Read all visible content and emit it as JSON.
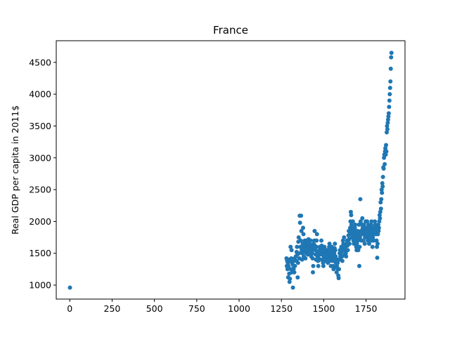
{
  "chart_data": {
    "type": "scatter",
    "title": "France",
    "xlabel": "",
    "ylabel": "Real GDP per capita in 2011$",
    "xlim": [
      -80,
      1980
    ],
    "ylim": [
      780,
      4840
    ],
    "xticks": [
      0,
      250,
      500,
      750,
      1000,
      1250,
      1500,
      1750
    ],
    "yticks": [
      1000,
      1500,
      2000,
      2500,
      3000,
      3500,
      4000,
      4500
    ],
    "grid": false,
    "marker_color": "#1f77b4",
    "series": [
      {
        "points": [
          [
            1,
            960
          ],
          [
            1280,
            1420
          ],
          [
            1282,
            1300
          ],
          [
            1284,
            1380
          ],
          [
            1286,
            1250
          ],
          [
            1288,
            1350
          ],
          [
            1290,
            1120
          ],
          [
            1292,
            1300
          ],
          [
            1294,
            1400
          ],
          [
            1296,
            1180
          ],
          [
            1298,
            1050
          ],
          [
            1300,
            1100
          ],
          [
            1302,
            1380
          ],
          [
            1304,
            1600
          ],
          [
            1306,
            1250
          ],
          [
            1308,
            1420
          ],
          [
            1310,
            1550
          ],
          [
            1312,
            1200
          ],
          [
            1314,
            1340
          ],
          [
            1316,
            1400
          ],
          [
            1318,
            960
          ],
          [
            1320,
            1310
          ],
          [
            1322,
            1250
          ],
          [
            1324,
            1380
          ],
          [
            1326,
            1200
          ],
          [
            1328,
            1420
          ],
          [
            1330,
            1300
          ],
          [
            1335,
            1450
          ],
          [
            1338,
            1380
          ],
          [
            1340,
            1520
          ],
          [
            1342,
            1600
          ],
          [
            1344,
            1480
          ],
          [
            1346,
            1120
          ],
          [
            1348,
            1350
          ],
          [
            1350,
            1680
          ],
          [
            1352,
            1750
          ],
          [
            1354,
            1500
          ],
          [
            1356,
            1420
          ],
          [
            1358,
            2090
          ],
          [
            1360,
            1980
          ],
          [
            1362,
            1600
          ],
          [
            1364,
            1700
          ],
          [
            1366,
            2090
          ],
          [
            1368,
            1850
          ],
          [
            1370,
            1550
          ],
          [
            1372,
            1400
          ],
          [
            1374,
            1500
          ],
          [
            1376,
            1650
          ],
          [
            1378,
            1900
          ],
          [
            1380,
            1800
          ],
          [
            1382,
            1450
          ],
          [
            1384,
            1600
          ],
          [
            1386,
            1550
          ],
          [
            1388,
            1700
          ],
          [
            1390,
            1520
          ],
          [
            1392,
            1420
          ],
          [
            1394,
            1650
          ],
          [
            1396,
            1580
          ],
          [
            1398,
            1500
          ],
          [
            1400,
            1700
          ],
          [
            1402,
            1620
          ],
          [
            1404,
            1550
          ],
          [
            1406,
            1480
          ],
          [
            1408,
            1650
          ],
          [
            1410,
            1720
          ],
          [
            1412,
            1600
          ],
          [
            1414,
            1500
          ],
          [
            1416,
            1560
          ],
          [
            1418,
            1640
          ],
          [
            1420,
            1580
          ],
          [
            1422,
            1700
          ],
          [
            1424,
            1520
          ],
          [
            1426,
            1450
          ],
          [
            1428,
            1600
          ],
          [
            1430,
            1550
          ],
          [
            1432,
            1500
          ],
          [
            1434,
            1420
          ],
          [
            1436,
            1200
          ],
          [
            1438,
            1300
          ],
          [
            1440,
            1650
          ],
          [
            1442,
            1580
          ],
          [
            1444,
            1700
          ],
          [
            1446,
            1850
          ],
          [
            1448,
            1620
          ],
          [
            1450,
            1550
          ],
          [
            1452,
            1480
          ],
          [
            1454,
            1400
          ],
          [
            1456,
            1600
          ],
          [
            1458,
            1700
          ],
          [
            1460,
            1800
          ],
          [
            1462,
            1520
          ],
          [
            1464,
            1450
          ],
          [
            1466,
            1380
          ],
          [
            1468,
            1300
          ],
          [
            1470,
            1420
          ],
          [
            1472,
            1500
          ],
          [
            1474,
            1550
          ],
          [
            1476,
            1600
          ],
          [
            1478,
            1480
          ],
          [
            1480,
            1400
          ],
          [
            1482,
            1520
          ],
          [
            1484,
            1580
          ],
          [
            1486,
            1700
          ],
          [
            1488,
            1620
          ],
          [
            1490,
            1550
          ],
          [
            1492,
            1480
          ],
          [
            1494,
            1400
          ],
          [
            1496,
            1350
          ],
          [
            1498,
            1300
          ],
          [
            1500,
            1450
          ],
          [
            1502,
            1520
          ],
          [
            1504,
            1600
          ],
          [
            1506,
            1560
          ],
          [
            1508,
            1480
          ],
          [
            1510,
            1420
          ],
          [
            1512,
            1380
          ],
          [
            1514,
            1450
          ],
          [
            1516,
            1500
          ],
          [
            1518,
            1550
          ],
          [
            1520,
            1480
          ],
          [
            1522,
            1400
          ],
          [
            1524,
            1350
          ],
          [
            1526,
            1420
          ],
          [
            1528,
            1480
          ],
          [
            1530,
            1550
          ],
          [
            1532,
            1600
          ],
          [
            1534,
            1650
          ],
          [
            1536,
            1520
          ],
          [
            1538,
            1450
          ],
          [
            1540,
            1380
          ],
          [
            1542,
            1300
          ],
          [
            1544,
            1420
          ],
          [
            1546,
            1500
          ],
          [
            1548,
            1600
          ],
          [
            1550,
            1550
          ],
          [
            1552,
            1450
          ],
          [
            1554,
            1380
          ],
          [
            1556,
            1300
          ],
          [
            1558,
            1250
          ],
          [
            1560,
            1400
          ],
          [
            1562,
            1500
          ],
          [
            1564,
            1580
          ],
          [
            1566,
            1650
          ],
          [
            1568,
            1550
          ],
          [
            1570,
            1450
          ],
          [
            1572,
            1350
          ],
          [
            1574,
            1280
          ],
          [
            1576,
            1200
          ],
          [
            1578,
            1300
          ],
          [
            1580,
            1400
          ],
          [
            1582,
            1350
          ],
          [
            1584,
            1250
          ],
          [
            1586,
            1150
          ],
          [
            1588,
            1110
          ],
          [
            1590,
            1250
          ],
          [
            1592,
            1400
          ],
          [
            1594,
            1500
          ],
          [
            1596,
            1550
          ],
          [
            1598,
            1450
          ],
          [
            1600,
            1400
          ],
          [
            1602,
            1500
          ],
          [
            1604,
            1600
          ],
          [
            1606,
            1520
          ],
          [
            1608,
            1450
          ],
          [
            1610,
            1380
          ],
          [
            1612,
            1550
          ],
          [
            1614,
            1700
          ],
          [
            1616,
            1650
          ],
          [
            1618,
            1580
          ],
          [
            1620,
            1750
          ],
          [
            1622,
            1620
          ],
          [
            1624,
            1550
          ],
          [
            1626,
            1480
          ],
          [
            1628,
            1600
          ],
          [
            1630,
            1500
          ],
          [
            1632,
            1450
          ],
          [
            1634,
            1550
          ],
          [
            1636,
            1650
          ],
          [
            1638,
            1700
          ],
          [
            1640,
            1620
          ],
          [
            1642,
            1550
          ],
          [
            1644,
            1700
          ],
          [
            1646,
            1780
          ],
          [
            1648,
            1850
          ],
          [
            1650,
            1720
          ],
          [
            1652,
            1650
          ],
          [
            1654,
            1800
          ],
          [
            1656,
            1900
          ],
          [
            1658,
            2000
          ],
          [
            1660,
            2150
          ],
          [
            1662,
            2100
          ],
          [
            1664,
            1950
          ],
          [
            1666,
            1850
          ],
          [
            1668,
            1750
          ],
          [
            1670,
            1900
          ],
          [
            1672,
            2000
          ],
          [
            1674,
            1800
          ],
          [
            1676,
            1700
          ],
          [
            1678,
            1650
          ],
          [
            1680,
            1750
          ],
          [
            1682,
            1850
          ],
          [
            1684,
            1900
          ],
          [
            1686,
            1950
          ],
          [
            1688,
            1800
          ],
          [
            1690,
            1700
          ],
          [
            1692,
            1600
          ],
          [
            1694,
            1550
          ],
          [
            1696,
            1650
          ],
          [
            1698,
            1750
          ],
          [
            1700,
            1850
          ],
          [
            1702,
            1700
          ],
          [
            1704,
            1550
          ],
          [
            1706,
            1800
          ],
          [
            1708,
            1950
          ],
          [
            1710,
            1300
          ],
          [
            1712,
            1600
          ],
          [
            1714,
            1750
          ],
          [
            1716,
            2350
          ],
          [
            1718,
            2000
          ],
          [
            1720,
            1850
          ],
          [
            1722,
            1700
          ],
          [
            1724,
            1800
          ],
          [
            1726,
            1950
          ],
          [
            1728,
            2050
          ],
          [
            1730,
            1900
          ],
          [
            1732,
            1800
          ],
          [
            1734,
            1700
          ],
          [
            1736,
            1850
          ],
          [
            1738,
            1950
          ],
          [
            1740,
            1800
          ],
          [
            1742,
            1650
          ],
          [
            1744,
            1750
          ],
          [
            1746,
            1900
          ],
          [
            1748,
            2000
          ],
          [
            1750,
            1850
          ],
          [
            1752,
            1750
          ],
          [
            1754,
            1900
          ],
          [
            1756,
            2000
          ],
          [
            1758,
            1800
          ],
          [
            1760,
            1700
          ],
          [
            1762,
            1850
          ],
          [
            1764,
            1950
          ],
          [
            1766,
            1800
          ],
          [
            1768,
            1650
          ],
          [
            1770,
            1750
          ],
          [
            1772,
            1900
          ],
          [
            1774,
            1800
          ],
          [
            1776,
            1700
          ],
          [
            1778,
            1850
          ],
          [
            1780,
            1950
          ],
          [
            1782,
            2000
          ],
          [
            1784,
            1800
          ],
          [
            1786,
            1700
          ],
          [
            1788,
            1600
          ],
          [
            1790,
            1750
          ],
          [
            1792,
            1900
          ],
          [
            1794,
            1850
          ],
          [
            1796,
            1700
          ],
          [
            1798,
            1800
          ],
          [
            1800,
            1900
          ],
          [
            1802,
            2000
          ],
          [
            1804,
            1950
          ],
          [
            1806,
            1850
          ],
          [
            1808,
            1900
          ],
          [
            1810,
            1800
          ],
          [
            1812,
            1700
          ],
          [
            1814,
            1600
          ],
          [
            1816,
            1430
          ],
          [
            1818,
            1650
          ],
          [
            1820,
            1800
          ],
          [
            1822,
            1950
          ],
          [
            1824,
            1850
          ],
          [
            1826,
            1900
          ],
          [
            1828,
            2000
          ],
          [
            1830,
            2100
          ],
          [
            1832,
            2050
          ],
          [
            1834,
            2150
          ],
          [
            1836,
            2300
          ],
          [
            1838,
            2200
          ],
          [
            1840,
            2350
          ],
          [
            1842,
            2500
          ],
          [
            1844,
            2450
          ],
          [
            1846,
            2600
          ],
          [
            1848,
            2550
          ],
          [
            1850,
            2700
          ],
          [
            1852,
            2850
          ],
          [
            1854,
            2830
          ],
          [
            1856,
            3000
          ],
          [
            1858,
            3050
          ],
          [
            1860,
            2900
          ],
          [
            1862,
            3100
          ],
          [
            1864,
            3150
          ],
          [
            1866,
            3050
          ],
          [
            1868,
            3200
          ],
          [
            1870,
            3100
          ],
          [
            1872,
            3400
          ],
          [
            1874,
            3500
          ],
          [
            1876,
            3450
          ],
          [
            1878,
            3550
          ],
          [
            1880,
            3600
          ],
          [
            1882,
            3650
          ],
          [
            1884,
            3700
          ],
          [
            1886,
            3800
          ],
          [
            1888,
            3900
          ],
          [
            1890,
            4000
          ],
          [
            1892,
            4100
          ],
          [
            1894,
            4200
          ],
          [
            1896,
            4400
          ],
          [
            1898,
            4580
          ],
          [
            1900,
            4650
          ]
        ]
      }
    ]
  }
}
